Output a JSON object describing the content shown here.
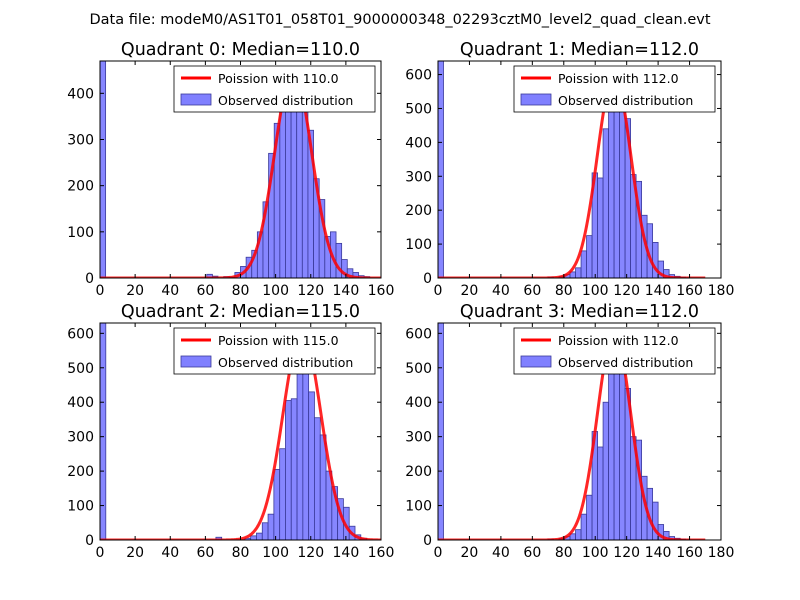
{
  "figure_title": "Data file: modeM0/AS1T01_058T01_9000000348_02293cztM0_level2_quad_clean.evt",
  "colors": {
    "bar_fill": "#8080ff",
    "bar_stroke": "#3a3a9a",
    "curve": "#ff0000",
    "axis": "#000000"
  },
  "chart_data": [
    {
      "type": "bar",
      "title": "Quadrant 0: Median=110.0",
      "xlim": [
        0,
        160
      ],
      "ylim": [
        0,
        470
      ],
      "xticks": [
        0,
        20,
        40,
        60,
        80,
        100,
        120,
        140,
        160
      ],
      "yticks": [
        0,
        100,
        200,
        300,
        400
      ],
      "bin_width": 3.2,
      "bins": [
        {
          "x": 0,
          "v": 470
        },
        {
          "x": 60.8,
          "v": 8
        },
        {
          "x": 64,
          "v": 4
        },
        {
          "x": 70.4,
          "v": 3
        },
        {
          "x": 73.6,
          "v": 2
        },
        {
          "x": 76.8,
          "v": 12
        },
        {
          "x": 80,
          "v": 25
        },
        {
          "x": 83.2,
          "v": 45
        },
        {
          "x": 86.4,
          "v": 60
        },
        {
          "x": 89.6,
          "v": 100
        },
        {
          "x": 92.8,
          "v": 165
        },
        {
          "x": 96,
          "v": 270
        },
        {
          "x": 99.2,
          "v": 335
        },
        {
          "x": 102.4,
          "v": 370
        },
        {
          "x": 105.6,
          "v": 400
        },
        {
          "x": 108.8,
          "v": 445
        },
        {
          "x": 112,
          "v": 400
        },
        {
          "x": 115.2,
          "v": 375
        },
        {
          "x": 118.4,
          "v": 320
        },
        {
          "x": 121.6,
          "v": 215
        },
        {
          "x": 124.8,
          "v": 170
        },
        {
          "x": 128,
          "v": 90
        },
        {
          "x": 131.2,
          "v": 100
        },
        {
          "x": 134.4,
          "v": 75
        },
        {
          "x": 137.6,
          "v": 40
        },
        {
          "x": 140.8,
          "v": 20
        },
        {
          "x": 144,
          "v": 12
        },
        {
          "x": 147.2,
          "v": 5
        },
        {
          "x": 150.4,
          "v": 3
        }
      ],
      "curve": {
        "mean": 110,
        "peak": 450,
        "sigma": 10.5,
        "xrange": [
          0,
          160
        ]
      },
      "legend": [
        "Poission with 110.0",
        "Observed distribution"
      ],
      "legend_position": "top-right"
    },
    {
      "type": "bar",
      "title": "Quadrant 1: Median=112.0",
      "xlim": [
        0,
        180
      ],
      "ylim": [
        0,
        640
      ],
      "xticks": [
        0,
        20,
        40,
        60,
        80,
        100,
        120,
        140,
        160,
        180
      ],
      "yticks": [
        0,
        100,
        200,
        300,
        400,
        500,
        600
      ],
      "bin_width": 3.5,
      "bins": [
        {
          "x": 0,
          "v": 640
        },
        {
          "x": 70,
          "v": 3
        },
        {
          "x": 77,
          "v": 5
        },
        {
          "x": 80.5,
          "v": 10
        },
        {
          "x": 84,
          "v": 18
        },
        {
          "x": 87.5,
          "v": 30
        },
        {
          "x": 91,
          "v": 80
        },
        {
          "x": 94.5,
          "v": 125
        },
        {
          "x": 98,
          "v": 310
        },
        {
          "x": 101.5,
          "v": 295
        },
        {
          "x": 105,
          "v": 440
        },
        {
          "x": 108.5,
          "v": 490
        },
        {
          "x": 112,
          "v": 600
        },
        {
          "x": 115.5,
          "v": 500
        },
        {
          "x": 119,
          "v": 470
        },
        {
          "x": 122.5,
          "v": 305
        },
        {
          "x": 126,
          "v": 285
        },
        {
          "x": 129.5,
          "v": 185
        },
        {
          "x": 133,
          "v": 160
        },
        {
          "x": 136.5,
          "v": 105
        },
        {
          "x": 140,
          "v": 50
        },
        {
          "x": 143.5,
          "v": 25
        },
        {
          "x": 147,
          "v": 10
        },
        {
          "x": 150.5,
          "v": 5
        },
        {
          "x": 154,
          "v": 3
        }
      ],
      "curve": {
        "mean": 112,
        "peak": 600,
        "sigma": 10.6,
        "xrange": [
          0,
          170
        ]
      },
      "legend": [
        "Poission with 112.0",
        "Observed distribution"
      ],
      "legend_position": "top-right"
    },
    {
      "type": "bar",
      "title": "Quadrant 2: Median=115.0",
      "xlim": [
        0,
        160
      ],
      "ylim": [
        0,
        630
      ],
      "xticks": [
        0,
        20,
        40,
        60,
        80,
        100,
        120,
        140,
        160
      ],
      "yticks": [
        0,
        100,
        200,
        300,
        400,
        500,
        600
      ],
      "bin_width": 3.3,
      "bins": [
        {
          "x": 0,
          "v": 630
        },
        {
          "x": 66,
          "v": 8
        },
        {
          "x": 82.5,
          "v": 5
        },
        {
          "x": 85.8,
          "v": 12
        },
        {
          "x": 89.1,
          "v": 20
        },
        {
          "x": 92.4,
          "v": 50
        },
        {
          "x": 95.7,
          "v": 75
        },
        {
          "x": 99,
          "v": 205
        },
        {
          "x": 102.3,
          "v": 265
        },
        {
          "x": 105.6,
          "v": 405
        },
        {
          "x": 108.9,
          "v": 410
        },
        {
          "x": 112.2,
          "v": 580
        },
        {
          "x": 115.5,
          "v": 515
        },
        {
          "x": 118.8,
          "v": 430
        },
        {
          "x": 122.1,
          "v": 355
        },
        {
          "x": 125.4,
          "v": 305
        },
        {
          "x": 128.7,
          "v": 200
        },
        {
          "x": 132,
          "v": 155
        },
        {
          "x": 135.3,
          "v": 120
        },
        {
          "x": 138.6,
          "v": 95
        },
        {
          "x": 141.9,
          "v": 40
        },
        {
          "x": 145.2,
          "v": 15
        },
        {
          "x": 148.5,
          "v": 5
        }
      ],
      "curve": {
        "mean": 115,
        "peak": 605,
        "sigma": 10.8,
        "xrange": [
          0,
          160
        ]
      },
      "legend": [
        "Poission with 115.0",
        "Observed distribution"
      ],
      "legend_position": "top-right"
    },
    {
      "type": "bar",
      "title": "Quadrant 3: Median=112.0",
      "xlim": [
        0,
        180
      ],
      "ylim": [
        0,
        630
      ],
      "xticks": [
        0,
        20,
        40,
        60,
        80,
        100,
        120,
        140,
        160,
        180
      ],
      "yticks": [
        0,
        100,
        200,
        300,
        400,
        500,
        600
      ],
      "bin_width": 3.5,
      "bins": [
        {
          "x": 0,
          "v": 630
        },
        {
          "x": 70,
          "v": 3
        },
        {
          "x": 77,
          "v": 5
        },
        {
          "x": 80.5,
          "v": 10
        },
        {
          "x": 84,
          "v": 18
        },
        {
          "x": 87.5,
          "v": 30
        },
        {
          "x": 91,
          "v": 75
        },
        {
          "x": 94.5,
          "v": 130
        },
        {
          "x": 98,
          "v": 315
        },
        {
          "x": 101.5,
          "v": 270
        },
        {
          "x": 105,
          "v": 400
        },
        {
          "x": 108.5,
          "v": 510
        },
        {
          "x": 112,
          "v": 590
        },
        {
          "x": 115.5,
          "v": 510
        },
        {
          "x": 119,
          "v": 440
        },
        {
          "x": 122.5,
          "v": 300
        },
        {
          "x": 126,
          "v": 290
        },
        {
          "x": 129.5,
          "v": 185
        },
        {
          "x": 133,
          "v": 150
        },
        {
          "x": 136.5,
          "v": 110
        },
        {
          "x": 140,
          "v": 45
        },
        {
          "x": 143.5,
          "v": 25
        },
        {
          "x": 147,
          "v": 10
        },
        {
          "x": 150.5,
          "v": 5
        },
        {
          "x": 154,
          "v": 3
        }
      ],
      "curve": {
        "mean": 112,
        "peak": 605,
        "sigma": 10.6,
        "xrange": [
          0,
          170
        ]
      },
      "legend": [
        "Poission with 112.0",
        "Observed distribution"
      ],
      "legend_position": "top-right"
    }
  ]
}
